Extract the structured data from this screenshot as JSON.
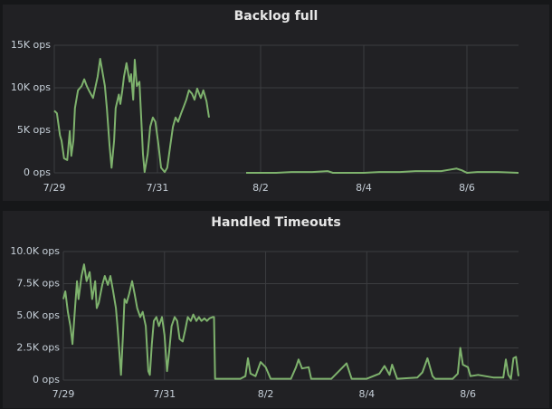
{
  "chart_data": [
    {
      "type": "line",
      "title": "Backlog full",
      "color": "#7eb26d",
      "grid": true,
      "xlim": [
        0,
        9
      ],
      "ylim": [
        0,
        15000
      ],
      "xticks": [
        {
          "value": 0,
          "label": "7/29"
        },
        {
          "value": 2,
          "label": "7/31"
        },
        {
          "value": 4,
          "label": "8/2"
        },
        {
          "value": 6,
          "label": "8/4"
        },
        {
          "value": 8,
          "label": "8/6"
        }
      ],
      "yticks": [
        {
          "value": 0,
          "label": "0 ops"
        },
        {
          "value": 5000,
          "label": "5K ops"
        },
        {
          "value": 10000,
          "label": "10K ops"
        },
        {
          "value": 15000,
          "label": "15K ops"
        }
      ],
      "x": [
        0,
        0.05,
        0.11,
        0.14,
        0.19,
        0.25,
        0.3,
        0.33,
        0.37,
        0.4,
        0.46,
        0.53,
        0.58,
        0.63,
        0.67,
        0.75,
        0.84,
        0.89,
        0.93,
        0.98,
        1.02,
        1.07,
        1.11,
        1.16,
        1.19,
        1.25,
        1.28,
        1.32,
        1.35,
        1.4,
        1.46,
        1.49,
        1.53,
        1.56,
        1.6,
        1.65,
        1.68,
        1.72,
        1.75,
        1.81,
        1.86,
        1.91,
        1.96,
        2.02,
        2.07,
        2.14,
        2.19,
        2.25,
        2.3,
        2.35,
        2.4,
        2.46,
        2.51,
        2.56,
        2.61,
        2.67,
        2.72,
        2.77,
        2.84,
        2.89,
        2.95,
        3.0,
        3.3,
        3.72,
        4.0,
        4.3,
        4.6,
        5.0,
        5.3,
        5.4,
        5.7,
        6.0,
        6.3,
        6.7,
        7.0,
        7.5,
        7.7,
        7.8,
        7.9,
        8.0,
        8.2,
        8.6,
        9.0
      ],
      "values": [
        7300,
        7000,
        4400,
        3800,
        1700,
        1500,
        4900,
        2000,
        3800,
        7600,
        9700,
        10200,
        11000,
        10200,
        9700,
        8800,
        11300,
        13400,
        12000,
        10200,
        7600,
        3300,
        600,
        3800,
        7600,
        9200,
        8100,
        9700,
        11300,
        12900,
        10700,
        11600,
        8600,
        13300,
        10200,
        10700,
        7000,
        2200,
        100,
        2200,
        5400,
        6500,
        6000,
        3300,
        600,
        100,
        600,
        3300,
        5400,
        6500,
        6000,
        7000,
        7800,
        8600,
        9700,
        9300,
        8600,
        9900,
        8800,
        9700,
        8400,
        6500,
        null,
        0,
        0,
        0,
        100,
        100,
        200,
        0,
        0,
        0,
        100,
        100,
        200,
        200,
        400,
        500,
        300,
        0,
        100,
        100,
        0
      ]
    },
    {
      "type": "line",
      "title": "Handled Timeouts",
      "color": "#7eb26d",
      "grid": true,
      "xlim": [
        0,
        9
      ],
      "ylim": [
        0,
        10000
      ],
      "xticks": [
        {
          "value": 0,
          "label": "7/29"
        },
        {
          "value": 2,
          "label": "7/31"
        },
        {
          "value": 4,
          "label": "8/2"
        },
        {
          "value": 6,
          "label": "8/4"
        },
        {
          "value": 8,
          "label": "8/6"
        }
      ],
      "yticks": [
        {
          "value": 0,
          "label": "0 ops"
        },
        {
          "value": 2500,
          "label": "2.5K ops"
        },
        {
          "value": 5000,
          "label": "5.0K ops"
        },
        {
          "value": 7500,
          "label": "7.5K ops"
        },
        {
          "value": 10000,
          "label": "10.0K ops"
        }
      ],
      "x": [
        0,
        0.04,
        0.09,
        0.14,
        0.18,
        0.23,
        0.27,
        0.3,
        0.36,
        0.41,
        0.46,
        0.52,
        0.57,
        0.63,
        0.66,
        0.7,
        0.77,
        0.82,
        0.88,
        0.93,
        0.98,
        1.04,
        1.07,
        1.11,
        1.14,
        1.18,
        1.21,
        1.25,
        1.3,
        1.36,
        1.41,
        1.46,
        1.52,
        1.57,
        1.63,
        1.68,
        1.71,
        1.75,
        1.79,
        1.84,
        1.89,
        1.95,
        2.0,
        2.05,
        2.09,
        2.14,
        2.2,
        2.25,
        2.3,
        2.36,
        2.41,
        2.46,
        2.52,
        2.57,
        2.63,
        2.68,
        2.73,
        2.79,
        2.84,
        2.89,
        2.95,
        2.98,
        3.0,
        3.2,
        3.5,
        3.6,
        3.65,
        3.7,
        3.8,
        3.9,
        4.0,
        4.1,
        4.5,
        4.6,
        4.65,
        4.72,
        4.85,
        4.9,
        5.3,
        5.45,
        5.6,
        5.7,
        6.0,
        6.25,
        6.35,
        6.45,
        6.5,
        6.6,
        7.0,
        7.1,
        7.2,
        7.3,
        7.35,
        7.7,
        7.8,
        7.85,
        7.9,
        8.0,
        8.05,
        8.2,
        8.5,
        8.7,
        8.75,
        8.8,
        8.85,
        8.9,
        8.95,
        9.0
      ],
      "values": [
        6300,
        6900,
        5300,
        4200,
        2800,
        5600,
        7700,
        6300,
        8100,
        9000,
        7700,
        8400,
        6300,
        7700,
        5600,
        6000,
        7400,
        8100,
        7400,
        8100,
        7000,
        5600,
        4200,
        2100,
        400,
        3500,
        6300,
        6000,
        6700,
        7700,
        6700,
        5600,
        4900,
        5300,
        4200,
        700,
        400,
        2800,
        4600,
        4900,
        4200,
        4900,
        3500,
        700,
        2100,
        4200,
        4900,
        4600,
        3200,
        3000,
        3900,
        4900,
        4600,
        5100,
        4600,
        4900,
        4600,
        4800,
        4600,
        4800,
        4900,
        4900,
        100,
        100,
        100,
        300,
        1700,
        500,
        300,
        1400,
        1000,
        100,
        100,
        1000,
        1600,
        900,
        1000,
        100,
        100,
        700,
        1300,
        100,
        100,
        500,
        1100,
        400,
        1200,
        100,
        200,
        600,
        1700,
        300,
        100,
        100,
        500,
        2500,
        1200,
        1000,
        300,
        400,
        200,
        200,
        1600,
        400,
        100,
        1700,
        1800,
        300
      ]
    }
  ]
}
